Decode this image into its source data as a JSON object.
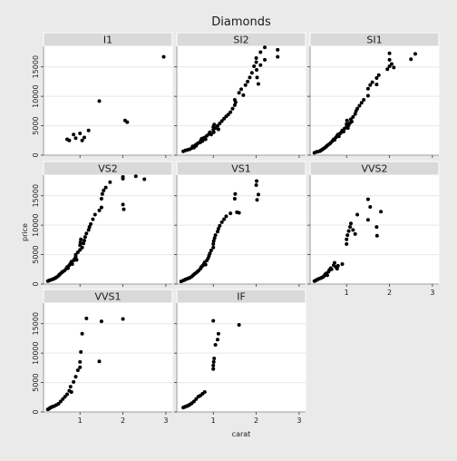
{
  "chart_data": {
    "type": "scatter",
    "title": "Diamonds",
    "xlabel": "carat",
    "ylabel": "price",
    "xlim": [
      0.15,
      3.15
    ],
    "ylim": [
      0,
      18500
    ],
    "x_ticks": [
      1,
      2,
      3
    ],
    "y_ticks": [
      0,
      5000,
      10000,
      15000
    ],
    "y_tick_labels": [
      "0",
      "5000",
      "10000",
      "15000"
    ],
    "grid": true,
    "panels": [
      {
        "name": "I1",
        "points": [
          [
            0.7,
            2700
          ],
          [
            0.75,
            2500
          ],
          [
            0.85,
            3500
          ],
          [
            0.9,
            2900
          ],
          [
            1.0,
            3700
          ],
          [
            1.05,
            2500
          ],
          [
            1.1,
            3000
          ],
          [
            1.2,
            4200
          ],
          [
            1.45,
            9200
          ],
          [
            2.05,
            5900
          ],
          [
            2.1,
            5600
          ],
          [
            2.95,
            16700
          ]
        ]
      },
      {
        "name": "SI2",
        "points": [
          [
            0.3,
            650
          ],
          [
            0.35,
            800
          ],
          [
            0.4,
            900
          ],
          [
            0.45,
            1000
          ],
          [
            0.5,
            1200
          ],
          [
            0.52,
            1500
          ],
          [
            0.55,
            1300
          ],
          [
            0.58,
            1700
          ],
          [
            0.6,
            1600
          ],
          [
            0.62,
            1900
          ],
          [
            0.66,
            2100
          ],
          [
            0.7,
            2200
          ],
          [
            0.71,
            2500
          ],
          [
            0.73,
            2800
          ],
          [
            0.75,
            2400
          ],
          [
            0.77,
            2900
          ],
          [
            0.8,
            3000
          ],
          [
            0.82,
            2700
          ],
          [
            0.85,
            3300
          ],
          [
            0.9,
            3600
          ],
          [
            0.92,
            3900
          ],
          [
            0.95,
            3500
          ],
          [
            1.0,
            4300
          ],
          [
            1.0,
            4800
          ],
          [
            1.01,
            3900
          ],
          [
            1.02,
            5200
          ],
          [
            1.05,
            4600
          ],
          [
            1.1,
            5000
          ],
          [
            1.12,
            4400
          ],
          [
            1.15,
            5400
          ],
          [
            1.2,
            5800
          ],
          [
            1.25,
            6200
          ],
          [
            1.3,
            6600
          ],
          [
            1.35,
            6900
          ],
          [
            1.4,
            7300
          ],
          [
            1.45,
            7900
          ],
          [
            1.5,
            8500
          ],
          [
            1.5,
            9400
          ],
          [
            1.52,
            9000
          ],
          [
            1.6,
            10600
          ],
          [
            1.65,
            11200
          ],
          [
            1.7,
            10200
          ],
          [
            1.75,
            11900
          ],
          [
            1.8,
            12500
          ],
          [
            1.85,
            13200
          ],
          [
            1.9,
            14000
          ],
          [
            1.95,
            15100
          ],
          [
            2.0,
            15800
          ],
          [
            2.0,
            16500
          ],
          [
            2.01,
            14500
          ],
          [
            2.02,
            13200
          ],
          [
            2.05,
            12100
          ],
          [
            2.1,
            15300
          ],
          [
            2.1,
            17500
          ],
          [
            2.2,
            16200
          ],
          [
            2.2,
            18300
          ],
          [
            2.5,
            16700
          ],
          [
            2.5,
            17900
          ]
        ]
      },
      {
        "name": "SI1",
        "points": [
          [
            0.25,
            400
          ],
          [
            0.3,
            550
          ],
          [
            0.33,
            600
          ],
          [
            0.38,
            700
          ],
          [
            0.4,
            800
          ],
          [
            0.43,
            950
          ],
          [
            0.46,
            1100
          ],
          [
            0.5,
            1300
          ],
          [
            0.53,
            1500
          ],
          [
            0.56,
            1700
          ],
          [
            0.6,
            1900
          ],
          [
            0.63,
            2100
          ],
          [
            0.67,
            2400
          ],
          [
            0.7,
            2700
          ],
          [
            0.72,
            2600
          ],
          [
            0.75,
            3000
          ],
          [
            0.78,
            3300
          ],
          [
            0.8,
            3500
          ],
          [
            0.82,
            3200
          ],
          [
            0.85,
            3700
          ],
          [
            0.88,
            3900
          ],
          [
            0.9,
            4200
          ],
          [
            0.93,
            4000
          ],
          [
            0.95,
            4500
          ],
          [
            1.0,
            4800
          ],
          [
            1.0,
            5300
          ],
          [
            1.01,
            5900
          ],
          [
            1.03,
            4600
          ],
          [
            1.05,
            5100
          ],
          [
            1.08,
            5500
          ],
          [
            1.1,
            6100
          ],
          [
            1.12,
            5700
          ],
          [
            1.15,
            6500
          ],
          [
            1.2,
            7000
          ],
          [
            1.22,
            7500
          ],
          [
            1.25,
            7900
          ],
          [
            1.3,
            8400
          ],
          [
            1.35,
            8900
          ],
          [
            1.4,
            9400
          ],
          [
            1.5,
            10100
          ],
          [
            1.5,
            11300
          ],
          [
            1.55,
            11900
          ],
          [
            1.6,
            12400
          ],
          [
            1.7,
            13100
          ],
          [
            1.7,
            12000
          ],
          [
            1.75,
            13600
          ],
          [
            1.95,
            14600
          ],
          [
            2.0,
            15100
          ],
          [
            2.0,
            16200
          ],
          [
            2.05,
            15500
          ],
          [
            2.1,
            14900
          ],
          [
            2.0,
            17300
          ],
          [
            2.5,
            16300
          ],
          [
            2.6,
            17200
          ]
        ]
      },
      {
        "name": "VS2",
        "points": [
          [
            0.25,
            500
          ],
          [
            0.28,
            600
          ],
          [
            0.3,
            650
          ],
          [
            0.34,
            750
          ],
          [
            0.38,
            850
          ],
          [
            0.4,
            950
          ],
          [
            0.43,
            1050
          ],
          [
            0.46,
            1200
          ],
          [
            0.5,
            1400
          ],
          [
            0.52,
            1600
          ],
          [
            0.55,
            1800
          ],
          [
            0.58,
            2000
          ],
          [
            0.6,
            2100
          ],
          [
            0.64,
            2300
          ],
          [
            0.68,
            2600
          ],
          [
            0.7,
            2900
          ],
          [
            0.72,
            2700
          ],
          [
            0.75,
            3200
          ],
          [
            0.78,
            3500
          ],
          [
            0.8,
            3800
          ],
          [
            0.82,
            3400
          ],
          [
            0.85,
            4000
          ],
          [
            0.88,
            4300
          ],
          [
            0.9,
            4600
          ],
          [
            0.9,
            5000
          ],
          [
            0.92,
            4100
          ],
          [
            0.95,
            5400
          ],
          [
            1.0,
            5800
          ],
          [
            1.0,
            6600
          ],
          [
            1.01,
            7100
          ],
          [
            1.02,
            7600
          ],
          [
            1.05,
            6200
          ],
          [
            1.08,
            6900
          ],
          [
            1.1,
            7400
          ],
          [
            1.12,
            8000
          ],
          [
            1.15,
            8600
          ],
          [
            1.2,
            9200
          ],
          [
            1.22,
            9700
          ],
          [
            1.25,
            10200
          ],
          [
            1.3,
            11000
          ],
          [
            1.35,
            11800
          ],
          [
            1.45,
            12500
          ],
          [
            1.5,
            13000
          ],
          [
            1.5,
            14500
          ],
          [
            1.52,
            15300
          ],
          [
            1.55,
            15900
          ],
          [
            1.6,
            16400
          ],
          [
            1.7,
            17300
          ],
          [
            2.0,
            17900
          ],
          [
            2.0,
            18200
          ],
          [
            2.0,
            13500
          ],
          [
            2.02,
            12700
          ],
          [
            2.3,
            18300
          ],
          [
            2.5,
            17800
          ]
        ]
      },
      {
        "name": "VS1",
        "points": [
          [
            0.25,
            450
          ],
          [
            0.3,
            600
          ],
          [
            0.33,
            700
          ],
          [
            0.36,
            800
          ],
          [
            0.4,
            900
          ],
          [
            0.43,
            1000
          ],
          [
            0.46,
            1100
          ],
          [
            0.5,
            1300
          ],
          [
            0.53,
            1500
          ],
          [
            0.56,
            1700
          ],
          [
            0.6,
            1900
          ],
          [
            0.63,
            2100
          ],
          [
            0.66,
            2300
          ],
          [
            0.7,
            2600
          ],
          [
            0.72,
            2900
          ],
          [
            0.75,
            3100
          ],
          [
            0.78,
            3400
          ],
          [
            0.8,
            3700
          ],
          [
            0.82,
            3300
          ],
          [
            0.85,
            4000
          ],
          [
            0.88,
            4400
          ],
          [
            0.9,
            4800
          ],
          [
            0.92,
            5200
          ],
          [
            0.95,
            5700
          ],
          [
            1.0,
            6200
          ],
          [
            1.0,
            6800
          ],
          [
            1.01,
            7300
          ],
          [
            1.03,
            7800
          ],
          [
            1.05,
            8300
          ],
          [
            1.1,
            8900
          ],
          [
            1.12,
            9400
          ],
          [
            1.15,
            9900
          ],
          [
            1.2,
            10500
          ],
          [
            1.25,
            11000
          ],
          [
            1.3,
            11500
          ],
          [
            1.4,
            12000
          ],
          [
            1.5,
            14500
          ],
          [
            1.51,
            15300
          ],
          [
            1.55,
            12200
          ],
          [
            1.6,
            12100
          ],
          [
            2.0,
            16800
          ],
          [
            2.01,
            17500
          ],
          [
            2.02,
            14300
          ],
          [
            2.05,
            15200
          ]
        ]
      },
      {
        "name": "VVS2",
        "points": [
          [
            0.25,
            500
          ],
          [
            0.28,
            600
          ],
          [
            0.3,
            700
          ],
          [
            0.33,
            800
          ],
          [
            0.36,
            900
          ],
          [
            0.4,
            1000
          ],
          [
            0.42,
            1100
          ],
          [
            0.45,
            1200
          ],
          [
            0.48,
            1400
          ],
          [
            0.5,
            1600
          ],
          [
            0.52,
            1800
          ],
          [
            0.55,
            1500
          ],
          [
            0.58,
            2100
          ],
          [
            0.6,
            2400
          ],
          [
            0.63,
            2700
          ],
          [
            0.65,
            2500
          ],
          [
            0.7,
            3200
          ],
          [
            0.72,
            3600
          ],
          [
            0.75,
            2900
          ],
          [
            0.78,
            2600
          ],
          [
            0.8,
            3100
          ],
          [
            0.9,
            3400
          ],
          [
            1.0,
            6800
          ],
          [
            1.0,
            7600
          ],
          [
            1.02,
            8300
          ],
          [
            1.05,
            9000
          ],
          [
            1.08,
            9700
          ],
          [
            1.1,
            10300
          ],
          [
            1.15,
            9200
          ],
          [
            1.2,
            8500
          ],
          [
            1.25,
            11800
          ],
          [
            1.5,
            10900
          ],
          [
            1.5,
            14400
          ],
          [
            1.55,
            13100
          ],
          [
            1.7,
            9700
          ],
          [
            1.71,
            8200
          ],
          [
            1.8,
            12300
          ]
        ]
      },
      {
        "name": "VVS1",
        "points": [
          [
            0.25,
            450
          ],
          [
            0.28,
            550
          ],
          [
            0.3,
            700
          ],
          [
            0.33,
            800
          ],
          [
            0.36,
            900
          ],
          [
            0.4,
            1000
          ],
          [
            0.45,
            1200
          ],
          [
            0.5,
            1400
          ],
          [
            0.55,
            1800
          ],
          [
            0.6,
            2200
          ],
          [
            0.65,
            2600
          ],
          [
            0.7,
            3000
          ],
          [
            0.75,
            3600
          ],
          [
            0.78,
            4300
          ],
          [
            0.8,
            3400
          ],
          [
            0.85,
            5100
          ],
          [
            0.9,
            6000
          ],
          [
            0.95,
            7100
          ],
          [
            1.0,
            7600
          ],
          [
            1.0,
            8500
          ],
          [
            1.02,
            10200
          ],
          [
            1.05,
            13300
          ],
          [
            1.15,
            15900
          ],
          [
            1.45,
            8600
          ],
          [
            1.5,
            15400
          ],
          [
            2.0,
            15800
          ]
        ]
      },
      {
        "name": "IF",
        "points": [
          [
            0.3,
            750
          ],
          [
            0.33,
            850
          ],
          [
            0.36,
            950
          ],
          [
            0.4,
            1050
          ],
          [
            0.43,
            1150
          ],
          [
            0.46,
            1300
          ],
          [
            0.5,
            1500
          ],
          [
            0.55,
            1800
          ],
          [
            0.6,
            2200
          ],
          [
            0.65,
            2600
          ],
          [
            0.7,
            2800
          ],
          [
            0.75,
            3100
          ],
          [
            0.8,
            3400
          ],
          [
            1.0,
            7300
          ],
          [
            1.0,
            7900
          ],
          [
            1.01,
            8500
          ],
          [
            1.02,
            9100
          ],
          [
            1.05,
            11400
          ],
          [
            1.1,
            12300
          ],
          [
            1.12,
            13300
          ],
          [
            1.0,
            15500
          ],
          [
            1.6,
            14800
          ]
        ]
      }
    ]
  }
}
